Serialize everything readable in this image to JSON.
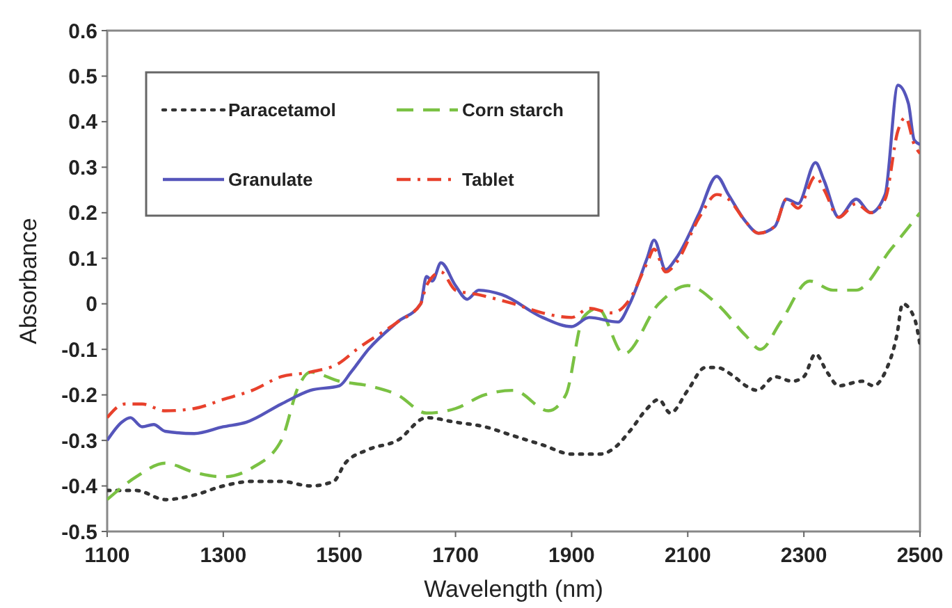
{
  "chart_data": {
    "type": "line",
    "xlabel": "Wavelength (nm)",
    "ylabel": "Absorbance",
    "xlim": [
      1100,
      2500
    ],
    "xticks": [
      1100,
      1300,
      1500,
      1700,
      1900,
      2100,
      2300,
      2500
    ],
    "ylim": [
      -0.5,
      0.6
    ],
    "yticks": [
      -0.5,
      -0.4,
      -0.3,
      -0.2,
      -0.1,
      0,
      0.1,
      0.2,
      0.3,
      0.4,
      0.5,
      0.6
    ],
    "grid": false,
    "legend": "top left",
    "marker": "none",
    "series": [
      {
        "name": "Paracetamol",
        "color": "#333333",
        "line_style": "dotted",
        "x": [
          1100,
          1150,
          1200,
          1250,
          1300,
          1350,
          1400,
          1450,
          1490,
          1510,
          1550,
          1600,
          1650,
          1700,
          1750,
          1800,
          1850,
          1900,
          1950,
          1970,
          2000,
          2030,
          2050,
          2070,
          2100,
          2130,
          2150,
          2180,
          2200,
          2220,
          2250,
          2280,
          2300,
          2320,
          2340,
          2360,
          2400,
          2420,
          2440,
          2460,
          2470,
          2490,
          2500
        ],
        "values": [
          -0.41,
          -0.41,
          -0.43,
          -0.42,
          -0.4,
          -0.39,
          -0.39,
          -0.4,
          -0.39,
          -0.35,
          -0.32,
          -0.3,
          -0.25,
          -0.26,
          -0.27,
          -0.29,
          -0.31,
          -0.33,
          -0.33,
          -0.32,
          -0.28,
          -0.23,
          -0.21,
          -0.24,
          -0.19,
          -0.14,
          -0.14,
          -0.16,
          -0.18,
          -0.19,
          -0.16,
          -0.17,
          -0.16,
          -0.11,
          -0.15,
          -0.18,
          -0.17,
          -0.18,
          -0.15,
          -0.07,
          0,
          -0.03,
          -0.09
        ]
      },
      {
        "name": "Corn starch",
        "color": "#7ac143",
        "line_style": "dashed",
        "x": [
          1100,
          1150,
          1200,
          1250,
          1300,
          1350,
          1400,
          1430,
          1450,
          1500,
          1550,
          1600,
          1650,
          1700,
          1750,
          1800,
          1860,
          1890,
          1920,
          1945,
          1990,
          2050,
          2100,
          2150,
          2200,
          2225,
          2260,
          2310,
          2350,
          2390,
          2450,
          2500
        ],
        "values": [
          -0.43,
          -0.38,
          -0.35,
          -0.37,
          -0.38,
          -0.36,
          -0.3,
          -0.18,
          -0.15,
          -0.17,
          -0.18,
          -0.2,
          -0.24,
          -0.23,
          -0.2,
          -0.19,
          -0.235,
          -0.2,
          -0.03,
          -0.01,
          -0.11,
          0,
          0.04,
          0,
          -0.07,
          -0.1,
          -0.04,
          0.05,
          0.03,
          0.03,
          0.12,
          0.2
        ]
      },
      {
        "name": "Granulate",
        "color": "#5555bb",
        "line_style": "solid",
        "x": [
          1100,
          1125,
          1140,
          1160,
          1180,
          1200,
          1250,
          1300,
          1340,
          1400,
          1450,
          1500,
          1520,
          1550,
          1600,
          1640,
          1650,
          1660,
          1675,
          1700,
          1720,
          1740,
          1780,
          1850,
          1900,
          1930,
          1980,
          2000,
          2030,
          2042,
          2062,
          2080,
          2120,
          2150,
          2170,
          2200,
          2222,
          2250,
          2270,
          2290,
          2320,
          2335,
          2360,
          2390,
          2415,
          2440,
          2462,
          2480,
          2490,
          2500
        ],
        "values": [
          -0.3,
          -0.26,
          -0.25,
          -0.27,
          -0.265,
          -0.28,
          -0.285,
          -0.27,
          -0.26,
          -0.22,
          -0.19,
          -0.18,
          -0.15,
          -0.1,
          -0.04,
          0,
          0.06,
          0.05,
          0.09,
          0.04,
          0.01,
          0.03,
          0.02,
          -0.03,
          -0.05,
          -0.03,
          -0.04,
          0,
          0.1,
          0.14,
          0.075,
          0.1,
          0.2,
          0.28,
          0.24,
          0.18,
          0.155,
          0.17,
          0.23,
          0.22,
          0.31,
          0.27,
          0.19,
          0.23,
          0.2,
          0.24,
          0.48,
          0.44,
          0.36,
          0.35
        ]
      },
      {
        "name": "Tablet",
        "color": "#e8412c",
        "line_style": "dashdot",
        "x": [
          1100,
          1130,
          1160,
          1200,
          1250,
          1300,
          1350,
          1400,
          1450,
          1500,
          1530,
          1600,
          1640,
          1650,
          1675,
          1700,
          1740,
          1800,
          1850,
          1900,
          1930,
          1970,
          2000,
          2030,
          2042,
          2062,
          2080,
          2120,
          2150,
          2170,
          2200,
          2222,
          2250,
          2270,
          2290,
          2320,
          2335,
          2360,
          2390,
          2415,
          2440,
          2462,
          2475,
          2490,
          2500
        ],
        "values": [
          -0.25,
          -0.22,
          -0.22,
          -0.235,
          -0.23,
          -0.21,
          -0.19,
          -0.16,
          -0.15,
          -0.13,
          -0.1,
          -0.04,
          0,
          0.04,
          0.07,
          0.03,
          0.02,
          0,
          -0.02,
          -0.03,
          -0.01,
          -0.02,
          0.01,
          0.09,
          0.12,
          0.07,
          0.09,
          0.19,
          0.24,
          0.23,
          0.18,
          0.155,
          0.17,
          0.23,
          0.21,
          0.28,
          0.25,
          0.19,
          0.22,
          0.2,
          0.23,
          0.38,
          0.41,
          0.35,
          0.33
        ]
      }
    ]
  }
}
